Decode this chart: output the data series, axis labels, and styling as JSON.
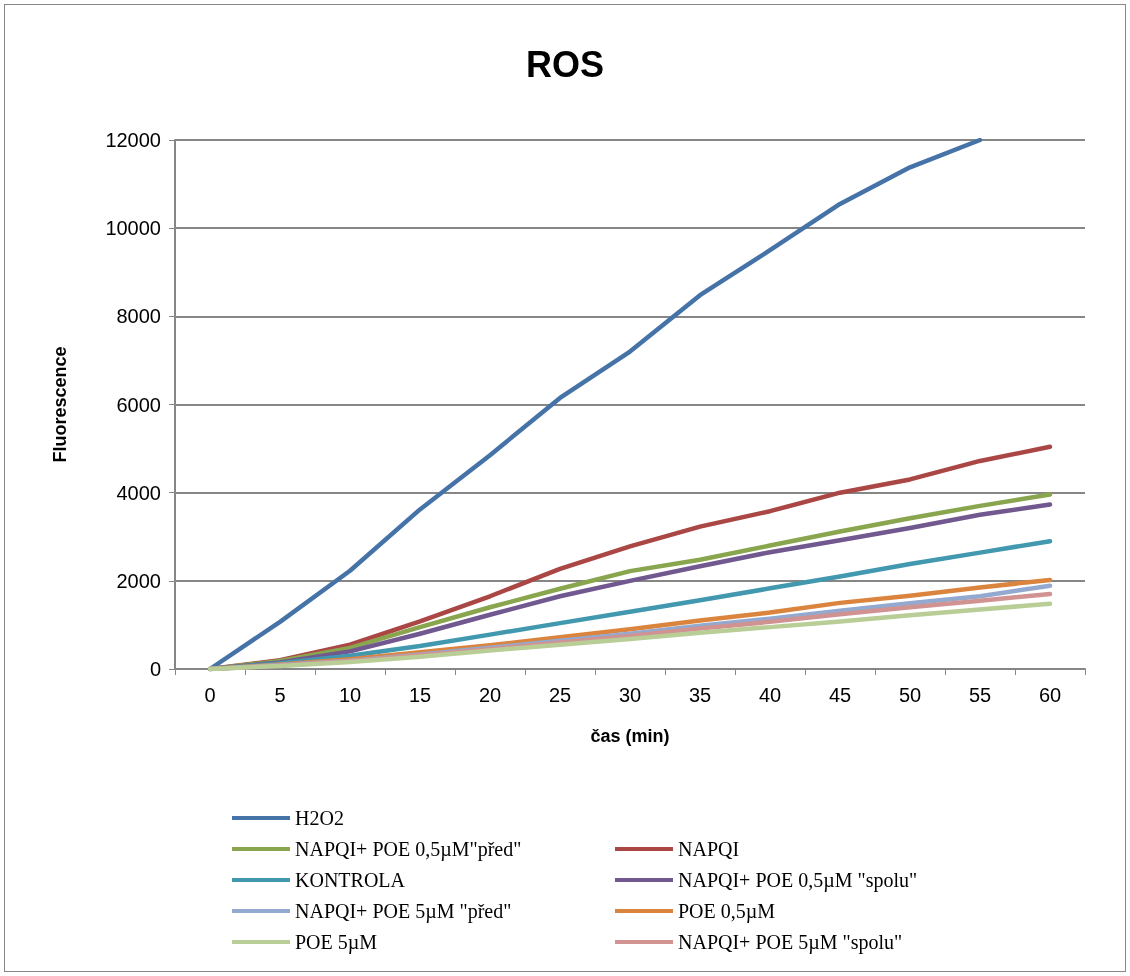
{
  "chart_data": {
    "type": "line",
    "title": "ROS",
    "xlabel": "čas (min)",
    "ylabel": "Fluorescence",
    "categories": [
      "0",
      "5",
      "10",
      "15",
      "20",
      "25",
      "30",
      "35",
      "40",
      "45",
      "50",
      "55",
      "60"
    ],
    "ylim": [
      0,
      12000
    ],
    "yticks": [
      0,
      2000,
      4000,
      6000,
      8000,
      10000,
      12000
    ],
    "grid": "y",
    "legend": "bottom",
    "marker": "none",
    "line_style": "solid",
    "series": [
      {
        "name": "H2O2",
        "color": "#4572a7",
        "values": [
          0,
          1070,
          2230,
          3620,
          4850,
          6150,
          7200,
          8480,
          9500,
          10550,
          11380,
          12000,
          null
        ]
      },
      {
        "name": "NAPQI",
        "color": "#aa4643",
        "values": [
          0,
          200,
          550,
          1080,
          1650,
          2270,
          2780,
          3230,
          3580,
          4000,
          4300,
          4720,
          5040
        ]
      },
      {
        "name": "NAPQI+ POE 0,5µM\"před\"",
        "color": "#89a54e",
        "values": [
          0,
          180,
          480,
          950,
          1400,
          1820,
          2220,
          2480,
          2800,
          3120,
          3420,
          3700,
          3960
        ]
      },
      {
        "name": "NAPQI+ POE 0,5µM \"spolu\"",
        "color": "#71588f",
        "values": [
          0,
          150,
          400,
          800,
          1230,
          1650,
          2000,
          2330,
          2650,
          2920,
          3200,
          3500,
          3730
        ]
      },
      {
        "name": "KONTROLA",
        "color": "#4198af",
        "values": [
          0,
          130,
          300,
          520,
          780,
          1040,
          1300,
          1560,
          1830,
          2100,
          2380,
          2640,
          2900
        ]
      },
      {
        "name": "POE 0,5µM",
        "color": "#db843d",
        "values": [
          0,
          100,
          220,
          380,
          540,
          720,
          900,
          1100,
          1280,
          1500,
          1660,
          1850,
          2020
        ]
      },
      {
        "name": "NAPQI+ POE 5µM \"před\"",
        "color": "#93a9cf",
        "values": [
          0,
          90,
          190,
          330,
          480,
          640,
          800,
          980,
          1140,
          1320,
          1490,
          1650,
          1890
        ]
      },
      {
        "name": "NAPQI+ POE 5µM \"spolu\"",
        "color": "#d19392",
        "values": [
          0,
          80,
          180,
          310,
          450,
          600,
          750,
          920,
          1070,
          1240,
          1400,
          1550,
          1700
        ]
      },
      {
        "name": "POE 5µM",
        "color": "#b9cd96",
        "values": [
          0,
          70,
          160,
          280,
          420,
          550,
          680,
          820,
          950,
          1080,
          1220,
          1350,
          1480
        ]
      }
    ]
  }
}
